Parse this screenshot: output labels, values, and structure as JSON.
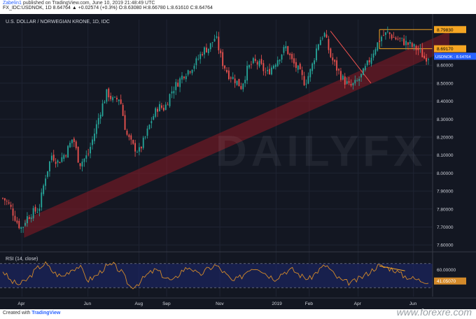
{
  "header": {
    "author": "Zabelin1",
    "published_text": "published on TradingView.com, June 10, 2019 21:48:49 UTC",
    "ohlc_line": "FX_IDC:USDNOK, 1D 8.64764 ▲ +0.02574 (+0.3%) O:8.63080 H:8.66780 L:8.61610 C:8.64764"
  },
  "footer": {
    "created_with": "Created with",
    "brand": "TradingView",
    "site_watermark": "www.forexre.com"
  },
  "chart_data": {
    "type": "line",
    "title": "U.S. DOLLAR / NORWEGIAN KRONE, 1D, IDC",
    "watermark": "DAILYFX",
    "price_axis_ticks": [
      8.7,
      8.6,
      8.5,
      8.4,
      8.3,
      8.2,
      8.1,
      8.0,
      7.9,
      7.8,
      7.7,
      7.6
    ],
    "price_axis_labels": [
      "8.70000",
      "8.60000",
      "8.50000",
      "8.40000",
      "8.30000",
      "8.20000",
      "8.10000",
      "8.00000",
      "7.90000",
      "7.80000",
      "7.70000",
      "7.60000"
    ],
    "ylim": [
      7.585,
      8.815
    ],
    "time_axis_labels": [
      "Apr",
      "Jun",
      "Aug",
      "Sep",
      "Nov",
      "2019",
      "Feb",
      "Apr",
      "Jun"
    ],
    "time_axis_positions": [
      0.045,
      0.2,
      0.32,
      0.385,
      0.51,
      0.642,
      0.72,
      0.835,
      0.965
    ],
    "series": [
      {
        "name": "USDNOK",
        "t": [
          0,
          0.01,
          0.02,
          0.035,
          0.045,
          0.055,
          0.07,
          0.085,
          0.1,
          0.115,
          0.13,
          0.15,
          0.165,
          0.18,
          0.2,
          0.215,
          0.23,
          0.245,
          0.26,
          0.275,
          0.29,
          0.305,
          0.32,
          0.335,
          0.35,
          0.365,
          0.38,
          0.395,
          0.41,
          0.425,
          0.44,
          0.455,
          0.47,
          0.485,
          0.5,
          0.515,
          0.53,
          0.545,
          0.56,
          0.575,
          0.59,
          0.605,
          0.62,
          0.635,
          0.65,
          0.665,
          0.68,
          0.695,
          0.71,
          0.725,
          0.74,
          0.755,
          0.77,
          0.785,
          0.8,
          0.815,
          0.83,
          0.845,
          0.86,
          0.875,
          0.89,
          0.905,
          0.92,
          0.935,
          0.95,
          0.965,
          0.98,
          0.99,
          1.0
        ],
        "close": [
          7.86,
          7.84,
          7.8,
          7.72,
          7.69,
          7.75,
          7.78,
          7.8,
          7.98,
          8.1,
          8.06,
          8.12,
          8.2,
          8.05,
          8.1,
          8.22,
          8.35,
          8.45,
          8.4,
          8.42,
          8.22,
          8.15,
          8.12,
          8.2,
          8.3,
          8.37,
          8.36,
          8.45,
          8.5,
          8.55,
          8.58,
          8.62,
          8.68,
          8.7,
          8.76,
          8.62,
          8.55,
          8.52,
          8.48,
          8.58,
          8.62,
          8.6,
          8.55,
          8.6,
          8.65,
          8.7,
          8.62,
          8.57,
          8.5,
          8.58,
          8.72,
          8.78,
          8.65,
          8.58,
          8.52,
          8.48,
          8.5,
          8.55,
          8.62,
          8.7,
          8.76,
          8.78,
          8.75,
          8.74,
          8.72,
          8.7,
          8.68,
          8.64,
          8.65
        ]
      },
      {
        "name": "RSI (14, close)",
        "t": [
          0,
          0.02,
          0.04,
          0.06,
          0.08,
          0.1,
          0.12,
          0.14,
          0.16,
          0.18,
          0.2,
          0.22,
          0.24,
          0.26,
          0.28,
          0.3,
          0.32,
          0.34,
          0.36,
          0.38,
          0.4,
          0.42,
          0.44,
          0.46,
          0.48,
          0.5,
          0.52,
          0.54,
          0.56,
          0.58,
          0.6,
          0.62,
          0.64,
          0.66,
          0.68,
          0.7,
          0.72,
          0.74,
          0.76,
          0.78,
          0.8,
          0.82,
          0.84,
          0.86,
          0.88,
          0.9,
          0.92,
          0.94,
          0.96,
          0.98,
          1.0
        ],
        "values": [
          58,
          40,
          35,
          45,
          62,
          70,
          55,
          48,
          60,
          66,
          42,
          50,
          64,
          68,
          55,
          30,
          38,
          52,
          60,
          48,
          40,
          58,
          65,
          50,
          60,
          68,
          55,
          40,
          48,
          62,
          64,
          52,
          45,
          56,
          60,
          50,
          44,
          58,
          68,
          50,
          40,
          38,
          46,
          55,
          66,
          64,
          60,
          50,
          46,
          42,
          41
        ]
      }
    ],
    "rsi_label": "RSI (14, close)",
    "rsi_axis_labels": [
      "60.00000",
      "40.00000"
    ],
    "rsi_levels": [
      70,
      30
    ],
    "rsi_ylim": [
      15,
      85
    ],
    "markers": {
      "upper_level": "8.79830",
      "lower_level": "8.69170",
      "current_price": "USDNOK : 8.64764",
      "rsi_current": "41.05070"
    },
    "levels": {
      "upper": 8.7983,
      "lower": 8.6917
    },
    "colors": {
      "background": "#131722",
      "up_candle": "#26a69a",
      "down_candle": "#ef5350",
      "channel_fill": "#8b1a24",
      "level_line": "#f5a623",
      "rsi_line": "#d48a2a",
      "rsi_band": "#1c2566"
    }
  }
}
